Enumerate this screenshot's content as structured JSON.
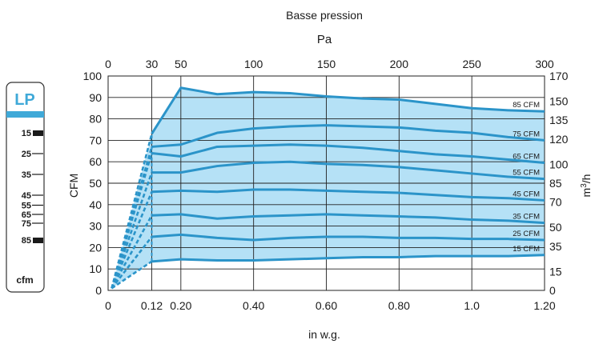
{
  "chart_data": {
    "type": "area",
    "title": "Basse pression",
    "xlabel": "in w.g.",
    "ylabel": "CFM",
    "x2label": "Pa",
    "y2label": "m³/h",
    "x_ticks": [
      "0",
      "0.12",
      "0.20",
      "0.40",
      "0.60",
      "0.80",
      "1.0",
      "1.20"
    ],
    "x_tick_values": [
      0,
      0.12,
      0.2,
      0.4,
      0.6,
      0.8,
      1.0,
      1.2
    ],
    "x2_ticks": [
      "0",
      "30",
      "50",
      "100",
      "150",
      "200",
      "250",
      "300"
    ],
    "x2_tick_values": [
      0,
      0.12,
      0.2,
      0.4,
      0.6,
      0.8,
      1.0,
      1.2
    ],
    "y_ticks": [
      "0",
      "10",
      "20",
      "30",
      "40",
      "50",
      "60",
      "70",
      "80",
      "90",
      "100"
    ],
    "y2_ticks": [
      "0",
      "15",
      "35",
      "50",
      "70",
      "85",
      "100",
      "120",
      "135",
      "150",
      "170"
    ],
    "y2_tick_values_cfm": [
      0,
      8.8,
      20.6,
      29.4,
      41.2,
      50,
      58.8,
      70.6,
      79.4,
      88.2,
      100
    ],
    "xlim": [
      0,
      1.2
    ],
    "ylim": [
      0,
      100
    ],
    "grid": true,
    "fill_color": "#b5e1f6",
    "line_color": "#2b94c9",
    "x": [
      0.12,
      0.2,
      0.3,
      0.4,
      0.5,
      0.6,
      0.7,
      0.8,
      0.9,
      1.0,
      1.1,
      1.2
    ],
    "series": [
      {
        "name": "85 CFM",
        "values": [
          73,
          94.5,
          91.5,
          92.5,
          92,
          90.5,
          89.5,
          89,
          87,
          85,
          84,
          83.5
        ]
      },
      {
        "name": "75 CFM",
        "values": [
          67,
          68,
          73.5,
          75.5,
          76.5,
          77,
          76.5,
          76,
          74.5,
          73.5,
          71.5,
          70
        ]
      },
      {
        "name": "65 CFM",
        "values": [
          64,
          62.5,
          67,
          67.5,
          68,
          67.5,
          66.5,
          65,
          63.5,
          62.5,
          61,
          59.5
        ]
      },
      {
        "name": "55 CFM",
        "values": [
          55,
          55,
          58,
          59.5,
          60,
          59,
          58.5,
          57.5,
          56,
          54.5,
          53,
          52
        ]
      },
      {
        "name": "45 CFM",
        "values": [
          46,
          46.5,
          46,
          47,
          47,
          46.5,
          46,
          45.5,
          44.5,
          43.5,
          43,
          42
        ]
      },
      {
        "name": "35 CFM",
        "values": [
          35,
          35.5,
          33.5,
          34.5,
          35,
          35.5,
          35,
          34.5,
          34,
          33,
          32.5,
          31.5
        ]
      },
      {
        "name": "25 CFM",
        "values": [
          25,
          26,
          24.5,
          23.5,
          24.5,
          25,
          25,
          24.5,
          24.5,
          24,
          24,
          23.5
        ]
      },
      {
        "name": "15 CFM",
        "values": [
          13.5,
          14.5,
          14,
          14,
          14.5,
          15,
          15.5,
          15.5,
          16,
          16,
          16,
          16.5
        ]
      }
    ],
    "dashed_start": [
      0.01,
      1
    ]
  },
  "side_panel": {
    "badge": "LP",
    "unit": "cfm",
    "labels": [
      "15",
      "25",
      "35",
      "45",
      "55",
      "65",
      "75",
      "85"
    ],
    "marked": [
      "15",
      "85"
    ],
    "accent": "#3fa9d8"
  }
}
